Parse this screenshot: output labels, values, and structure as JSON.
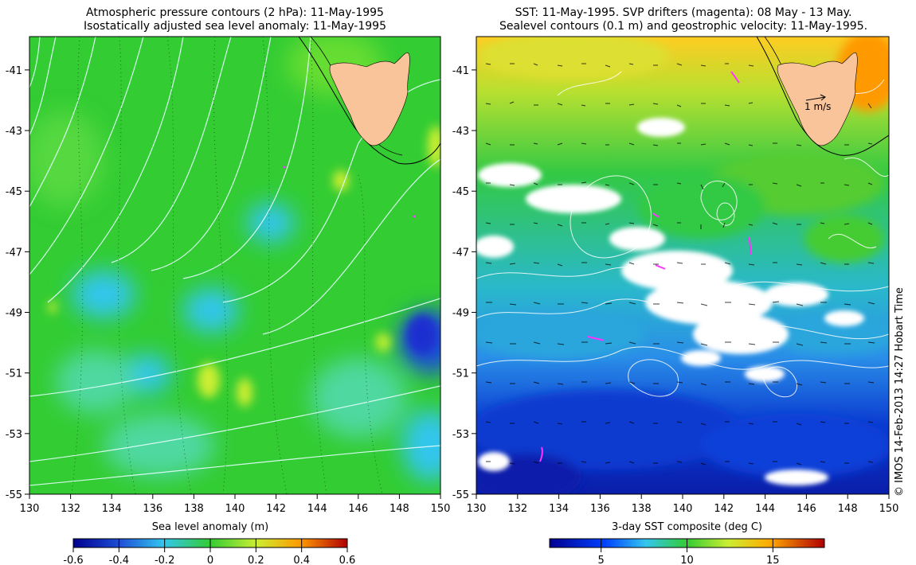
{
  "left_panel": {
    "title_line1": "Atmospheric pressure contours (2 hPa): 11-May-1995",
    "title_line2": "Isostatically adjusted sea level anomaly: 11-May-1995",
    "colorbar_label": "Sea level anomaly (m)",
    "colorbar_ticks": [
      "-0.6",
      "-0.4",
      "-0.2",
      "0",
      "0.2",
      "0.4",
      "0.6"
    ],
    "colorbar_values": [
      -0.6,
      -0.4,
      -0.2,
      0,
      0.2,
      0.4,
      0.6
    ]
  },
  "right_panel": {
    "title_line1": "SST: 11-May-1995. SVP drifters (magenta): 08 May - 13 May.",
    "title_line2": "Sealevel contours (0.1 m) and geostrophic velocity: 11-May-1995.",
    "colorbar_label": "3-day SST composite (deg C)",
    "colorbar_ticks": [
      "5",
      "10",
      "15"
    ],
    "colorbar_values": [
      5,
      10,
      15
    ],
    "colorbar_range": [
      2,
      18
    ],
    "velocity_scale_label": "1 m/s"
  },
  "axes": {
    "lon_ticks": [
      "130",
      "132",
      "134",
      "136",
      "138",
      "140",
      "142",
      "144",
      "146",
      "148",
      "150"
    ],
    "lon_values": [
      130,
      132,
      134,
      136,
      138,
      140,
      142,
      144,
      146,
      148,
      150
    ],
    "lon_range": [
      130,
      150
    ],
    "lat_ticks": [
      "-41",
      "-43",
      "-45",
      "-47",
      "-49",
      "-51",
      "-53",
      "-55"
    ],
    "lat_values": [
      -41,
      -43,
      -45,
      -47,
      -49,
      -51,
      -53,
      -55
    ],
    "lat_range": [
      -55,
      -39.9
    ]
  },
  "credit": "© IMOS 14-Feb-2013 14:27 Hobart Time",
  "colors": {
    "land": "#f9c499",
    "pressure_contour": "#e6ffff",
    "sla_mid": "#33cc33",
    "sst_cold": "#0033cc",
    "sst_warm": "#ffcc00",
    "drifter": "#ff33ff"
  }
}
